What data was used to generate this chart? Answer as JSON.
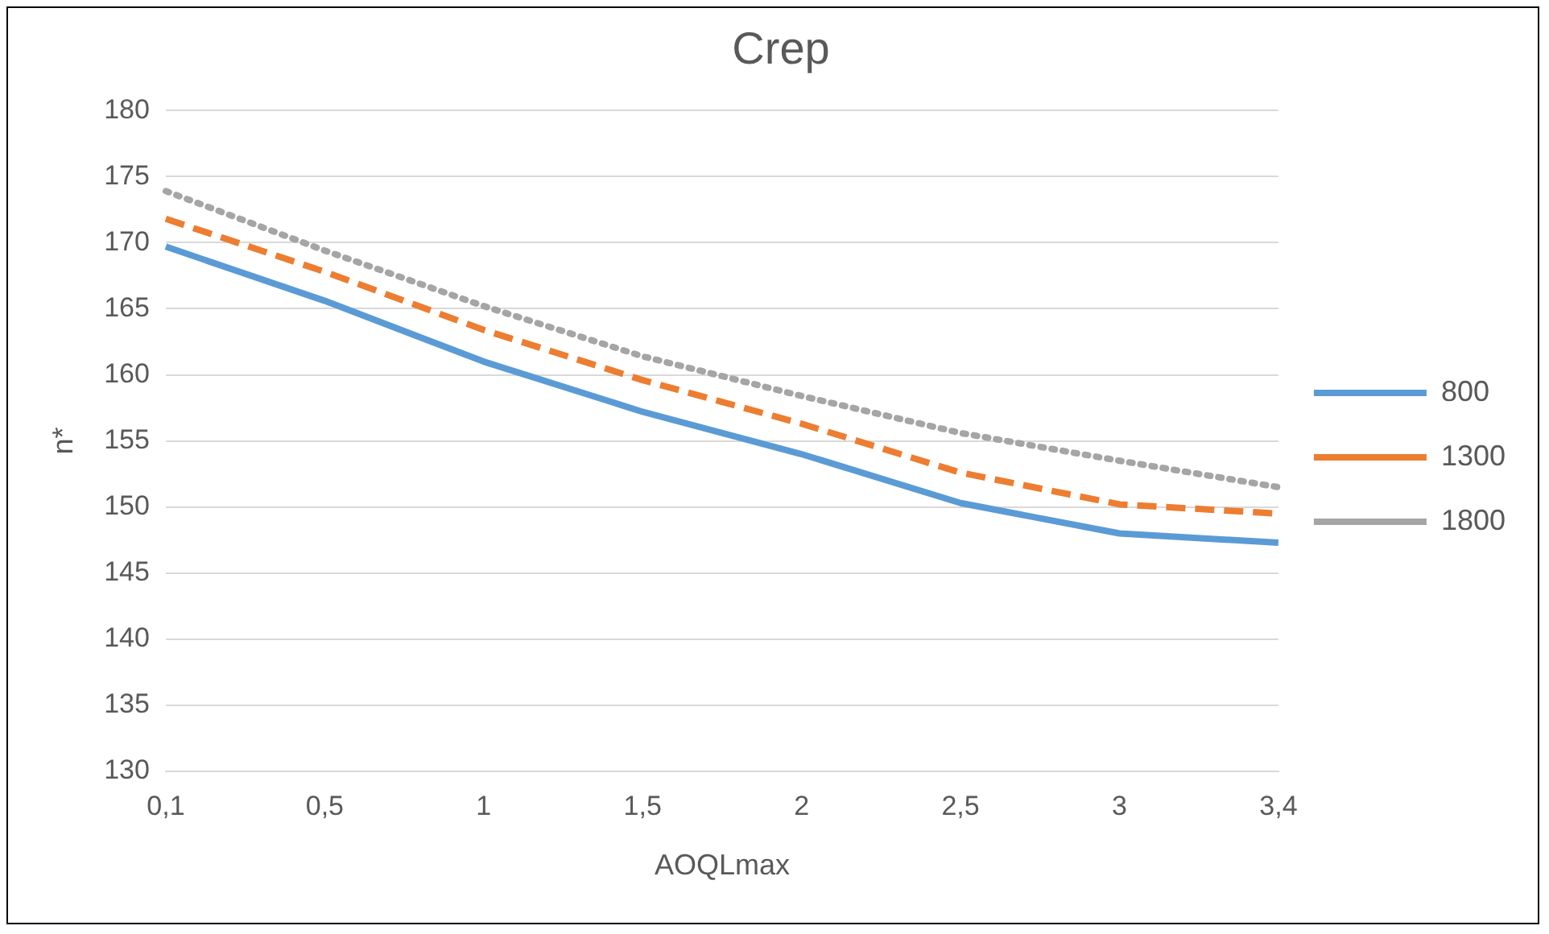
{
  "chart_data": {
    "type": "line",
    "title": "Crep",
    "xlabel": "AOQLmax",
    "ylabel": "n*",
    "categories": [
      "0,1",
      "0,5",
      "1",
      "1,5",
      "2",
      "2,5",
      "3",
      "3,4"
    ],
    "series": [
      {
        "name": "800",
        "color": "#5b9bd5",
        "line_style": "solid",
        "values": [
          169.7,
          165.6,
          161,
          157.2,
          154,
          150.3,
          148,
          147.3
        ]
      },
      {
        "name": "1300",
        "color": "#ed7d31",
        "line_style": "dashed",
        "values": [
          171.8,
          167.8,
          163.4,
          159.6,
          156.3,
          152.6,
          150.2,
          149.5
        ]
      },
      {
        "name": "1800",
        "color": "#a5a5a5",
        "line_style": "dotted",
        "values": [
          173.9,
          169.4,
          165.2,
          161.4,
          158.4,
          155.6,
          153.5,
          151.5
        ]
      }
    ],
    "ylim": [
      130,
      180
    ],
    "yticks": [
      130,
      135,
      140,
      145,
      150,
      155,
      160,
      165,
      170,
      175,
      180
    ],
    "grid": "y",
    "legend": "right",
    "marker": "none"
  }
}
